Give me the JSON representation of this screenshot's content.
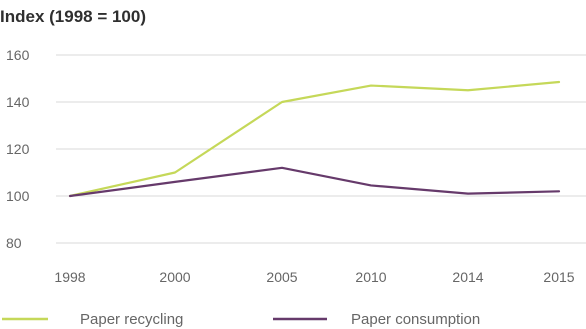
{
  "chart_data": {
    "type": "line",
    "title": "Index (1998 = 100)",
    "xlabel": "",
    "ylabel": "",
    "categories": [
      "1998",
      "2000",
      "2005",
      "2010",
      "2014",
      "2015"
    ],
    "y_ticks": [
      "160",
      "140",
      "120",
      "100",
      "80"
    ],
    "ylim": [
      80,
      160
    ],
    "grid": true,
    "legend_position": "bottom",
    "series": [
      {
        "name": "Paper recycling",
        "color": "#c5d859",
        "values": [
          100,
          110,
          140,
          147,
          145,
          148.5
        ]
      },
      {
        "name": "Paper consumption",
        "color": "#663a6b",
        "values": [
          100,
          106,
          112,
          104.5,
          101,
          102
        ]
      }
    ]
  }
}
